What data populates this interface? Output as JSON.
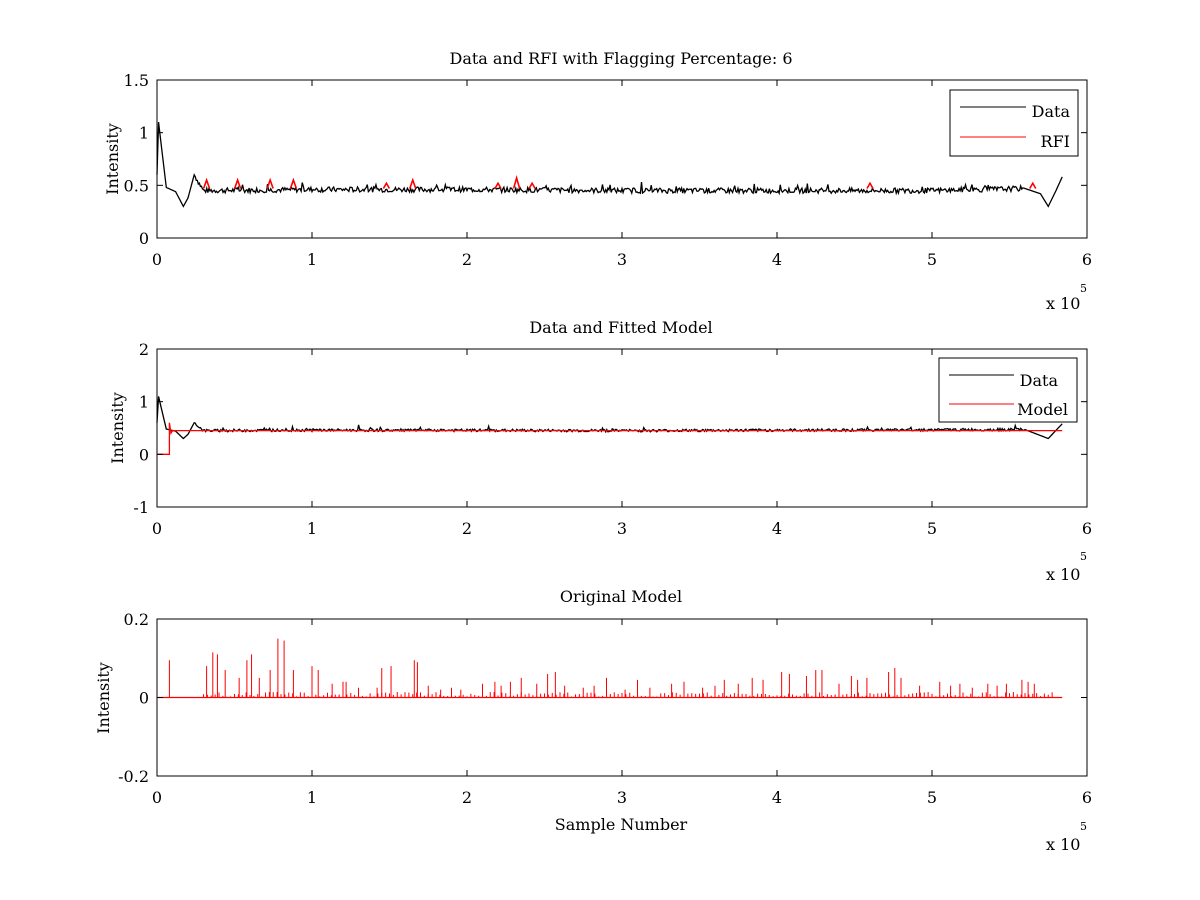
{
  "colors": {
    "data": "#000000",
    "rfi": "#ff0000",
    "model": "#ff0000",
    "background": "#ffffff"
  },
  "chart_data": [
    {
      "type": "line",
      "title": "Data and RFI with Flagging Percentage: 6",
      "xlabel": "",
      "ylabel": "Intensity",
      "xlim": [
        0,
        600000
      ],
      "ylim": [
        0,
        1.5
      ],
      "x_ticks": [
        "0",
        "1",
        "2",
        "3",
        "4",
        "5",
        "6"
      ],
      "x_multiplier": "x 10",
      "x_multiplier_exp": "5",
      "y_ticks": [
        "0",
        "0.5",
        "1",
        "1.5"
      ],
      "legend_position": "top-right",
      "series": [
        {
          "name": "Data",
          "color": "#000000",
          "x": [
            0,
            1000,
            3000,
            6000,
            12000,
            17000,
            20000,
            24000,
            30000,
            100000,
            200000,
            300000,
            400000,
            500000,
            560000,
            570000,
            575000,
            580000,
            584000
          ],
          "y": [
            0.6,
            1.1,
            0.85,
            0.48,
            0.44,
            0.3,
            0.38,
            0.6,
            0.45,
            0.46,
            0.46,
            0.45,
            0.45,
            0.45,
            0.47,
            0.42,
            0.3,
            0.45,
            0.58
          ]
        },
        {
          "name": "RFI",
          "color": "#ff0000",
          "x": [
            32000,
            52000,
            73000,
            88000,
            148000,
            165000,
            220000,
            232000,
            242000,
            460000,
            565000
          ],
          "y": [
            0.55,
            0.55,
            0.55,
            0.55,
            0.52,
            0.55,
            0.52,
            0.57,
            0.52,
            0.52,
            0.52
          ]
        }
      ]
    },
    {
      "type": "line",
      "title": "Data and Fitted Model",
      "xlabel": "",
      "ylabel": "Intensity",
      "xlim": [
        0,
        600000
      ],
      "ylim": [
        -1,
        2
      ],
      "x_ticks": [
        "0",
        "1",
        "2",
        "3",
        "4",
        "5",
        "6"
      ],
      "x_multiplier": "x 10",
      "x_multiplier_exp": "5",
      "y_ticks": [
        "-1",
        "0",
        "1",
        "2"
      ],
      "legend_position": "top-right",
      "series": [
        {
          "name": "Data",
          "color": "#000000",
          "x": [
            0,
            1000,
            3000,
            6000,
            12000,
            17000,
            20000,
            24000,
            30000,
            100000,
            300000,
            560000,
            575000,
            584000
          ],
          "y": [
            0.6,
            1.1,
            0.85,
            0.48,
            0.44,
            0.3,
            0.38,
            0.6,
            0.45,
            0.46,
            0.45,
            0.47,
            0.3,
            0.58
          ]
        },
        {
          "name": "Model",
          "color": "#ff0000",
          "x": [
            0,
            8000,
            8000,
            9000,
            10000,
            584000
          ],
          "y": [
            0,
            0,
            0.6,
            0.4,
            0.45,
            0.45
          ]
        }
      ]
    },
    {
      "type": "line",
      "title": "Original Model",
      "xlabel": "Sample Number",
      "ylabel": "Intensity",
      "xlim": [
        0,
        600000
      ],
      "ylim": [
        -0.2,
        0.2
      ],
      "x_ticks": [
        "0",
        "1",
        "2",
        "3",
        "4",
        "5",
        "6"
      ],
      "x_multiplier": "x 10",
      "x_multiplier_exp": "5",
      "y_ticks": [
        "-0.2",
        "0",
        "0.2"
      ],
      "series": [
        {
          "name": "",
          "color": "#ff0000",
          "spike_x": [
            8000,
            32000,
            36000,
            39000,
            44000,
            53000,
            58000,
            61000,
            66000,
            73000,
            78000,
            82000,
            88000,
            100000,
            104000,
            113000,
            120000,
            122000,
            130000,
            142000,
            145000,
            151000,
            166000,
            168000,
            175000,
            183000,
            190000,
            196000,
            210000,
            218000,
            222000,
            228000,
            235000,
            245000,
            252000,
            257000,
            263000,
            275000,
            282000,
            290000,
            302000,
            310000,
            318000,
            332000,
            340000,
            352000,
            360000,
            366000,
            375000,
            384000,
            391000,
            403000,
            408000,
            419000,
            425000,
            429000,
            440000,
            448000,
            452000,
            458000,
            472000,
            476000,
            480000,
            492000,
            505000,
            512000,
            518000,
            526000,
            536000,
            542000,
            548000,
            558000,
            562000,
            566000
          ],
          "spike_y": [
            0.095,
            0.08,
            0.115,
            0.11,
            0.07,
            0.05,
            0.095,
            0.11,
            0.05,
            0.07,
            0.15,
            0.145,
            0.07,
            0.08,
            0.07,
            0.035,
            0.04,
            0.04,
            0.025,
            0.025,
            0.075,
            0.08,
            0.095,
            0.09,
            0.03,
            0.02,
            0.025,
            0.02,
            0.035,
            0.04,
            0.03,
            0.04,
            0.05,
            0.035,
            0.06,
            0.065,
            0.03,
            0.025,
            0.03,
            0.05,
            0.02,
            0.045,
            0.025,
            0.035,
            0.04,
            0.025,
            0.03,
            0.045,
            0.035,
            0.05,
            0.045,
            0.065,
            0.06,
            0.055,
            0.07,
            0.07,
            0.035,
            0.055,
            0.045,
            0.05,
            0.065,
            0.075,
            0.05,
            0.03,
            0.04,
            0.03,
            0.035,
            0.025,
            0.035,
            0.03,
            0.035,
            0.045,
            0.04,
            0.035
          ]
        }
      ]
    }
  ]
}
